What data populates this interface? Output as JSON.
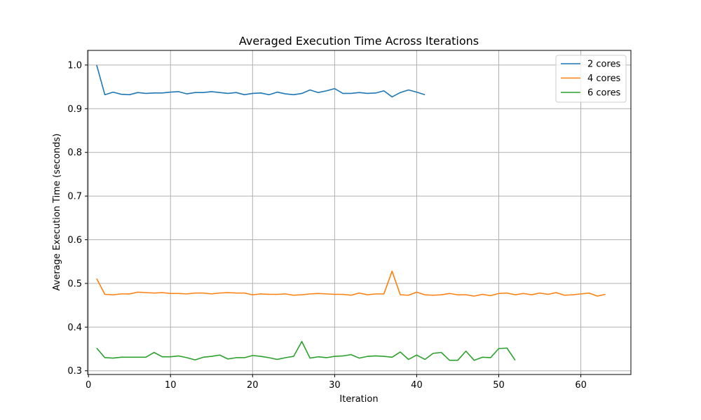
{
  "chart_data": {
    "type": "line",
    "title": "Averaged Execution Time Across Iterations",
    "xlabel": "Iteration",
    "ylabel": "Average Execution Time (seconds)",
    "xlim": [
      -0.1,
      66.1
    ],
    "ylim": [
      0.2915,
      1.0335
    ],
    "xticks": [
      0,
      10,
      20,
      30,
      40,
      50,
      60
    ],
    "yticks": [
      0.3,
      0.4,
      0.5,
      0.6,
      0.7,
      0.8,
      0.9,
      1.0
    ],
    "ytick_labels": [
      "0.3",
      "0.4",
      "0.5",
      "0.6",
      "0.7",
      "0.8",
      "0.9",
      "1.0"
    ],
    "grid": true,
    "legend_position": "top-right",
    "series": [
      {
        "name": "2 cores",
        "color": "#1f77b4",
        "values": [
          1.0,
          0.932,
          0.938,
          0.933,
          0.932,
          0.937,
          0.935,
          0.936,
          0.936,
          0.938,
          0.939,
          0.934,
          0.937,
          0.937,
          0.939,
          0.937,
          0.935,
          0.937,
          0.932,
          0.935,
          0.936,
          0.932,
          0.938,
          0.934,
          0.932,
          0.935,
          0.943,
          0.937,
          0.941,
          0.946,
          0.935,
          0.935,
          0.937,
          0.935,
          0.936,
          0.941,
          0.927,
          0.937,
          0.943,
          0.938,
          0.932
        ]
      },
      {
        "name": "4 cores",
        "color": "#ff7f0e",
        "values": [
          0.511,
          0.475,
          0.474,
          0.476,
          0.476,
          0.48,
          0.479,
          0.478,
          0.479,
          0.477,
          0.477,
          0.476,
          0.478,
          0.478,
          0.476,
          0.478,
          0.479,
          0.478,
          0.478,
          0.474,
          0.476,
          0.475,
          0.475,
          0.476,
          0.473,
          0.474,
          0.476,
          0.477,
          0.476,
          0.475,
          0.475,
          0.473,
          0.478,
          0.474,
          0.476,
          0.476,
          0.528,
          0.474,
          0.473,
          0.48,
          0.474,
          0.473,
          0.474,
          0.477,
          0.474,
          0.474,
          0.471,
          0.475,
          0.472,
          0.477,
          0.478,
          0.474,
          0.477,
          0.474,
          0.478,
          0.475,
          0.479,
          0.473,
          0.474,
          0.476,
          0.478,
          0.471,
          0.475
        ]
      },
      {
        "name": "6 cores",
        "color": "#2ca02c",
        "values": [
          0.352,
          0.33,
          0.329,
          0.331,
          0.331,
          0.331,
          0.331,
          0.342,
          0.332,
          0.332,
          0.334,
          0.33,
          0.325,
          0.331,
          0.333,
          0.336,
          0.327,
          0.33,
          0.33,
          0.335,
          0.333,
          0.33,
          0.326,
          0.33,
          0.333,
          0.367,
          0.329,
          0.332,
          0.33,
          0.333,
          0.334,
          0.337,
          0.329,
          0.333,
          0.334,
          0.333,
          0.331,
          0.343,
          0.326,
          0.336,
          0.326,
          0.34,
          0.342,
          0.324,
          0.324,
          0.345,
          0.324,
          0.331,
          0.33,
          0.351,
          0.352,
          0.324
        ]
      }
    ]
  }
}
